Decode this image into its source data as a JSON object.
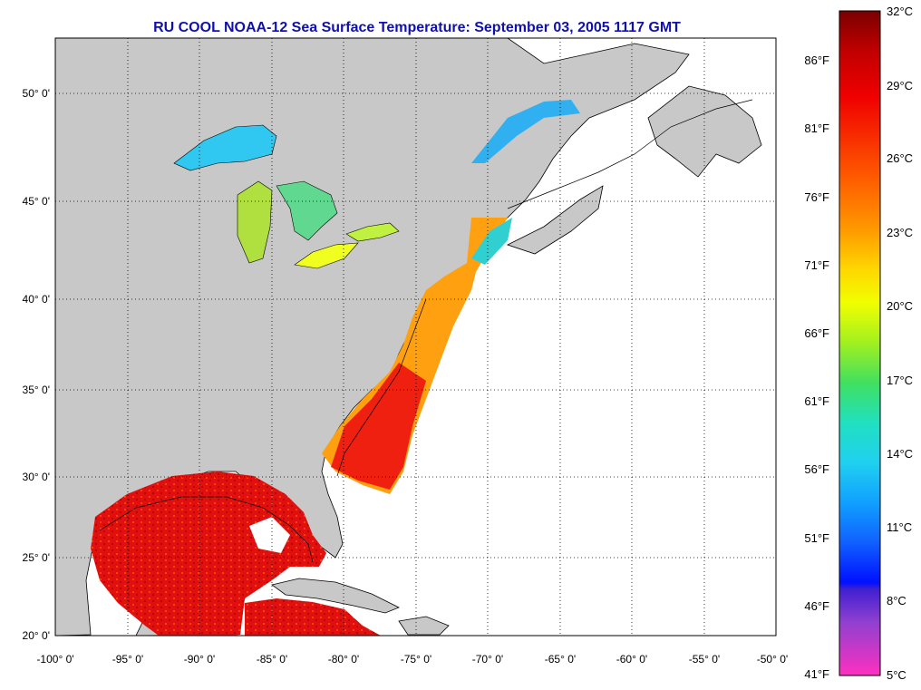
{
  "title": "RU COOL  NOAA-12  Sea Surface Temperature:  September 03, 2005 1117 GMT",
  "map": {
    "lat_labels": [
      "50° 0'",
      "45° 0'",
      "40° 0'",
      "35° 0'",
      "30° 0'",
      "25° 0'",
      "20° 0'"
    ],
    "lon_labels": [
      "-100° 0'",
      "-95° 0'",
      "-90° 0'",
      "-85° 0'",
      "-80° 0'",
      "-75° 0'",
      "-70° 0'",
      "-65° 0'",
      "-60° 0'",
      "-55° 0'",
      "-50° 0'"
    ],
    "colors": {
      "land": "#c8c8c8",
      "ocean_nodata": "#ffffff",
      "grid": "#000000",
      "title": "#1010b0"
    }
  },
  "colorbar": {
    "fahrenheit_labels": [
      "86°F",
      "81°F",
      "76°F",
      "71°F",
      "66°F",
      "61°F",
      "56°F",
      "51°F",
      "46°F",
      "41°F"
    ],
    "celsius_labels": [
      "32°C",
      "29°C",
      "26°C",
      "23°C",
      "20°C",
      "17°C",
      "14°C",
      "11°C",
      "8°C",
      "5°C"
    ]
  }
}
